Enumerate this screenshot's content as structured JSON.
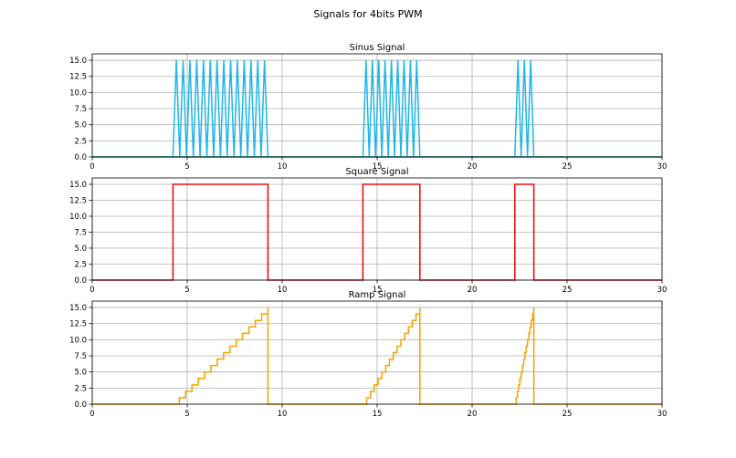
{
  "figure": {
    "title": "Signals for 4bits PWM"
  },
  "chart_data": [
    {
      "type": "line",
      "title": "Sinus Signal",
      "xlim": [
        0,
        30
      ],
      "ylim": [
        0,
        16
      ],
      "x_ticks": [
        0,
        5,
        10,
        15,
        20,
        25,
        30
      ],
      "x_tick_labels": [
        "0",
        "5",
        "10",
        "15",
        "20",
        "25",
        "30"
      ],
      "y_ticks": [
        0,
        2.5,
        5,
        7.5,
        10,
        12.5,
        15
      ],
      "y_tick_labels": [
        "0.0",
        "2.5",
        "5.0",
        "7.5",
        "10.0",
        "12.5",
        "15.0"
      ],
      "grid": true,
      "color": "#1fb6e8",
      "baseline_color": "#008080",
      "bursts": [
        {
          "x_start": 4.25,
          "x_end": 9.25,
          "cycles": 14,
          "min": 0,
          "max": 15
        },
        {
          "x_start": 14.25,
          "x_end": 17.25,
          "cycles": 9,
          "min": 0,
          "max": 15
        },
        {
          "x_start": 22.25,
          "x_end": 23.25,
          "cycles": 3,
          "min": 0,
          "max": 15
        }
      ]
    },
    {
      "type": "line",
      "title": "Square Signal",
      "xlim": [
        0,
        30
      ],
      "ylim": [
        0,
        16
      ],
      "x_ticks": [
        0,
        5,
        10,
        15,
        20,
        25,
        30
      ],
      "x_tick_labels": [
        "0",
        "5",
        "10",
        "15",
        "20",
        "25",
        "30"
      ],
      "y_ticks": [
        0,
        2.5,
        5,
        7.5,
        10,
        12.5,
        15
      ],
      "y_tick_labels": [
        "0.0",
        "2.5",
        "5.0",
        "7.5",
        "10.0",
        "12.5",
        "15.0"
      ],
      "grid": true,
      "color": "#ee1111",
      "pulses": [
        {
          "x_start": 4.25,
          "x_end": 9.25,
          "high": 15
        },
        {
          "x_start": 14.25,
          "x_end": 17.25,
          "high": 15
        },
        {
          "x_start": 22.25,
          "x_end": 23.25,
          "high": 15
        }
      ],
      "low": 0
    },
    {
      "type": "line",
      "title": "Ramp Signal",
      "xlim": [
        0,
        30
      ],
      "ylim": [
        0,
        16
      ],
      "x_ticks": [
        0,
        5,
        10,
        15,
        20,
        25,
        30
      ],
      "x_tick_labels": [
        "0",
        "5",
        "10",
        "15",
        "20",
        "25",
        "30"
      ],
      "y_ticks": [
        0,
        2.5,
        5,
        7.5,
        10,
        12.5,
        15
      ],
      "y_tick_labels": [
        "0.0",
        "2.5",
        "5.0",
        "7.5",
        "10.0",
        "12.5",
        "15.0"
      ],
      "grid": true,
      "color": "#f5a300",
      "ramps": [
        {
          "x_start": 4.25,
          "x_end": 9.25,
          "max": 15
        },
        {
          "x_start": 14.25,
          "x_end": 17.25,
          "max": 15
        },
        {
          "x_start": 22.25,
          "x_end": 23.25,
          "max": 15
        }
      ]
    }
  ]
}
